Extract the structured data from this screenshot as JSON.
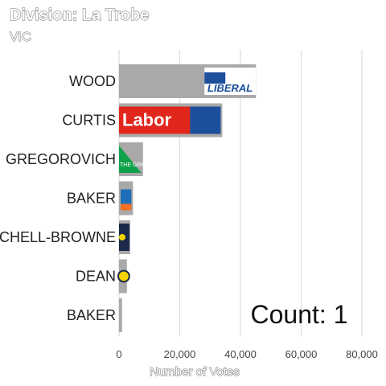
{
  "chart_data": {
    "type": "bar",
    "orientation": "horizontal",
    "title": "Division: La Trobe",
    "subtitle": "VIC",
    "xlabel": "Number of Votes",
    "ylabel": "",
    "xlim": [
      0,
      80000
    ],
    "xticks": [
      0,
      20000,
      40000,
      60000,
      80000
    ],
    "xtick_labels": [
      "0",
      "20,000",
      "40,000",
      "60,000",
      "80,000"
    ],
    "grid": true,
    "categories": [
      "WOOD",
      "CURTIS",
      "GREGOROVICH",
      "BAKER",
      "MITCHELL-BROWNE",
      "DEAN",
      "BAKER"
    ],
    "values": [
      45100,
      34000,
      7900,
      4600,
      3700,
      2600,
      1000
    ],
    "party_logos": [
      {
        "text": "LIBERAL",
        "color": "#1c4f9c"
      },
      {
        "text": "Labor",
        "color": "#e1261c"
      },
      {
        "text": "THE GREENS",
        "color": "#10a24b"
      },
      {
        "text": "",
        "color": "#f36f21"
      },
      {
        "text": "",
        "color": "#1b2a4a"
      },
      {
        "text": "",
        "color": "#f5d400"
      },
      {
        "text": "",
        "color": ""
      }
    ],
    "annotation": "Count:  1"
  }
}
